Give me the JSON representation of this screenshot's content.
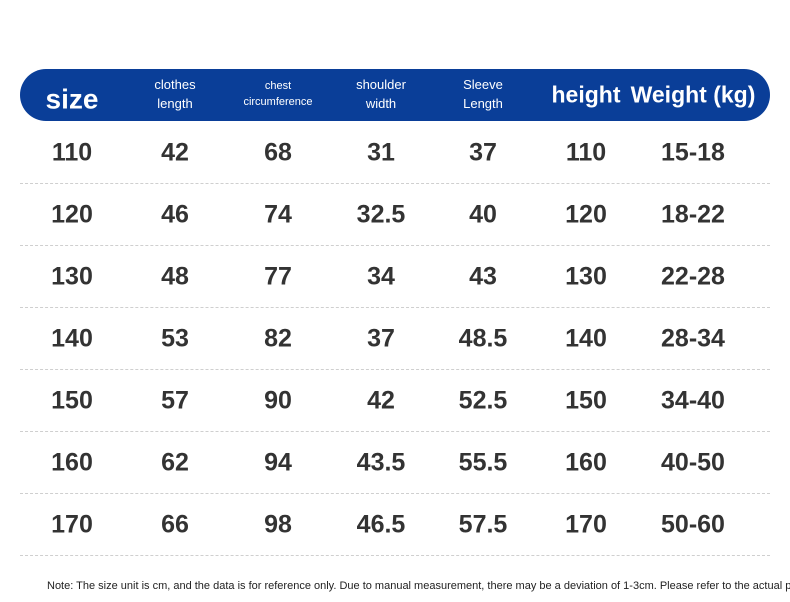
{
  "table": {
    "header": [
      "size",
      "clothes length",
      "chest circumference",
      "shoulder width",
      "Sleeve Length",
      "height",
      "Weight (kg)"
    ],
    "rows": [
      [
        110,
        42,
        68,
        31,
        37,
        110,
        "15-18"
      ],
      [
        120,
        46,
        74,
        32.5,
        40,
        120,
        "18-22"
      ],
      [
        130,
        48,
        77,
        34,
        43,
        130,
        "22-28"
      ],
      [
        140,
        53,
        82,
        37,
        48.5,
        140,
        "28-34"
      ],
      [
        150,
        57,
        90,
        42,
        52.5,
        150,
        "34-40"
      ],
      [
        160,
        62,
        94,
        43.5,
        55.5,
        160,
        "40-50"
      ],
      [
        170,
        66,
        98,
        46.5,
        57.5,
        170,
        "50-60"
      ]
    ]
  },
  "note": "Note: The size unit is cm, and the data is for reference only. Due to manual measurement, there may be a deviation of 1-3cm. Please refer to the actual product"
}
